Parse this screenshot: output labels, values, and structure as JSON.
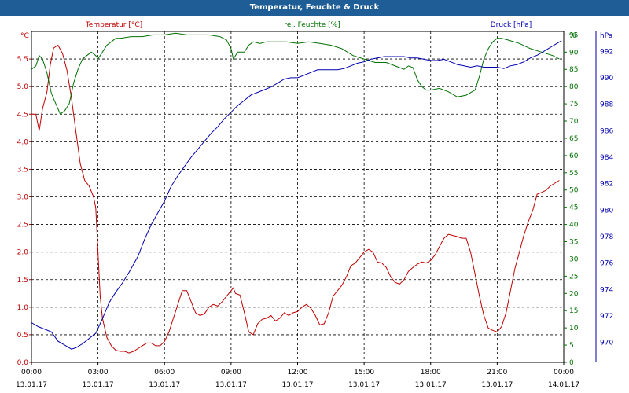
{
  "window": {
    "title": "Temperatur, Feuchte & Druck"
  },
  "chart_data": {
    "type": "line",
    "title": "Temperatur, Feuchte & Druck",
    "x": {
      "range_hours": [
        0,
        24
      ],
      "tick_times": [
        "00:00",
        "03:00",
        "06:00",
        "09:00",
        "12:00",
        "15:00",
        "18:00",
        "21:00",
        "00:00"
      ],
      "tick_dates": [
        "13.01.17",
        "13.01.17",
        "13.01.17",
        "13.01.17",
        "13.01.17",
        "13.01.17",
        "13.01.17",
        "13.01.17",
        "14.01.17"
      ]
    },
    "axes": {
      "temperature": {
        "unit": "°C",
        "ylim": [
          0,
          6
        ],
        "ticks": [
          "0.0",
          "0.5",
          "1.0",
          "1.5",
          "2.0",
          "2.5",
          "3.0",
          "3.5",
          "4.0",
          "4.5",
          "5.0",
          "5.5"
        ]
      },
      "humidity": {
        "unit": "%",
        "ylim": [
          0,
          96
        ],
        "ticks": [
          "0",
          "5",
          "10",
          "15",
          "20",
          "25",
          "30",
          "35",
          "40",
          "45",
          "50",
          "55",
          "60",
          "65",
          "70",
          "75",
          "80",
          "85",
          "90",
          "95"
        ]
      },
      "pressure": {
        "unit": "hPa",
        "ylim": [
          968.5,
          993.5
        ],
        "ticks": [
          "970",
          "972",
          "974",
          "976",
          "978",
          "980",
          "982",
          "984",
          "986",
          "988",
          "990",
          "992"
        ]
      }
    },
    "grid": true,
    "legend": [
      "Temperatur [°C]",
      "rel. Feuchte [%]",
      "Druck [hPa]"
    ],
    "series": [
      {
        "name": "Temperatur [°C]",
        "axis": "temperature",
        "color": "#c00000",
        "points": [
          [
            0,
            4.5
          ],
          [
            0.2,
            4.5
          ],
          [
            0.35,
            4.2
          ],
          [
            0.5,
            4.6
          ],
          [
            0.7,
            4.9
          ],
          [
            0.85,
            5.4
          ],
          [
            1.0,
            5.7
          ],
          [
            1.2,
            5.75
          ],
          [
            1.4,
            5.6
          ],
          [
            1.6,
            5.3
          ],
          [
            1.8,
            4.8
          ],
          [
            2.0,
            4.2
          ],
          [
            2.2,
            3.6
          ],
          [
            2.4,
            3.3
          ],
          [
            2.6,
            3.2
          ],
          [
            2.8,
            3.0
          ],
          [
            2.9,
            2.8
          ],
          [
            3.0,
            2.0
          ],
          [
            3.1,
            1.2
          ],
          [
            3.2,
            0.8
          ],
          [
            3.4,
            0.45
          ],
          [
            3.6,
            0.3
          ],
          [
            3.8,
            0.22
          ],
          [
            4.0,
            0.2
          ],
          [
            4.2,
            0.2
          ],
          [
            4.4,
            0.17
          ],
          [
            4.6,
            0.2
          ],
          [
            4.8,
            0.25
          ],
          [
            5.0,
            0.3
          ],
          [
            5.2,
            0.35
          ],
          [
            5.4,
            0.35
          ],
          [
            5.6,
            0.3
          ],
          [
            5.8,
            0.3
          ],
          [
            6.0,
            0.38
          ],
          [
            6.2,
            0.55
          ],
          [
            6.4,
            0.8
          ],
          [
            6.6,
            1.05
          ],
          [
            6.8,
            1.3
          ],
          [
            7.0,
            1.3
          ],
          [
            7.2,
            1.1
          ],
          [
            7.4,
            0.9
          ],
          [
            7.6,
            0.85
          ],
          [
            7.8,
            0.88
          ],
          [
            8.0,
            1.0
          ],
          [
            8.2,
            1.05
          ],
          [
            8.4,
            1.02
          ],
          [
            8.6,
            1.1
          ],
          [
            8.8,
            1.2
          ],
          [
            9.0,
            1.3
          ],
          [
            9.1,
            1.35
          ],
          [
            9.2,
            1.25
          ],
          [
            9.4,
            1.22
          ],
          [
            9.6,
            0.9
          ],
          [
            9.8,
            0.55
          ],
          [
            10.0,
            0.5
          ],
          [
            10.2,
            0.7
          ],
          [
            10.4,
            0.78
          ],
          [
            10.6,
            0.8
          ],
          [
            10.8,
            0.85
          ],
          [
            11.0,
            0.75
          ],
          [
            11.2,
            0.8
          ],
          [
            11.4,
            0.9
          ],
          [
            11.6,
            0.85
          ],
          [
            11.8,
            0.9
          ],
          [
            12.0,
            0.92
          ],
          [
            12.2,
            1.0
          ],
          [
            12.4,
            1.05
          ],
          [
            12.6,
            0.98
          ],
          [
            12.8,
            0.85
          ],
          [
            13.0,
            0.68
          ],
          [
            13.2,
            0.7
          ],
          [
            13.4,
            0.9
          ],
          [
            13.6,
            1.2
          ],
          [
            13.8,
            1.3
          ],
          [
            14.0,
            1.4
          ],
          [
            14.2,
            1.55
          ],
          [
            14.4,
            1.75
          ],
          [
            14.6,
            1.8
          ],
          [
            14.8,
            1.9
          ],
          [
            15.0,
            2.0
          ],
          [
            15.2,
            2.05
          ],
          [
            15.4,
            2.0
          ],
          [
            15.6,
            1.82
          ],
          [
            15.8,
            1.8
          ],
          [
            16.0,
            1.72
          ],
          [
            16.2,
            1.55
          ],
          [
            16.4,
            1.45
          ],
          [
            16.6,
            1.42
          ],
          [
            16.8,
            1.5
          ],
          [
            17.0,
            1.65
          ],
          [
            17.2,
            1.72
          ],
          [
            17.4,
            1.78
          ],
          [
            17.6,
            1.82
          ],
          [
            17.8,
            1.8
          ],
          [
            18.0,
            1.85
          ],
          [
            18.2,
            1.95
          ],
          [
            18.4,
            2.1
          ],
          [
            18.6,
            2.25
          ],
          [
            18.8,
            2.32
          ],
          [
            19.0,
            2.3
          ],
          [
            19.2,
            2.28
          ],
          [
            19.4,
            2.25
          ],
          [
            19.6,
            2.25
          ],
          [
            19.8,
            2.0
          ],
          [
            20.0,
            1.6
          ],
          [
            20.2,
            1.2
          ],
          [
            20.4,
            0.85
          ],
          [
            20.6,
            0.62
          ],
          [
            20.8,
            0.58
          ],
          [
            21.0,
            0.55
          ],
          [
            21.2,
            0.65
          ],
          [
            21.4,
            0.9
          ],
          [
            21.6,
            1.3
          ],
          [
            21.8,
            1.7
          ],
          [
            22.0,
            2.0
          ],
          [
            22.2,
            2.3
          ],
          [
            22.4,
            2.55
          ],
          [
            22.6,
            2.75
          ],
          [
            22.8,
            3.05
          ],
          [
            23.0,
            3.08
          ],
          [
            23.2,
            3.12
          ],
          [
            23.4,
            3.2
          ],
          [
            23.6,
            3.25
          ],
          [
            23.8,
            3.3
          ]
        ]
      },
      {
        "name": "rel. Feuchte [%]",
        "axis": "humidity",
        "color": "#007000",
        "points": [
          [
            0,
            85
          ],
          [
            0.2,
            86
          ],
          [
            0.35,
            89
          ],
          [
            0.5,
            88
          ],
          [
            0.7,
            84
          ],
          [
            0.9,
            78
          ],
          [
            1.1,
            75
          ],
          [
            1.3,
            72
          ],
          [
            1.5,
            73
          ],
          [
            1.7,
            75
          ],
          [
            1.9,
            81
          ],
          [
            2.1,
            85
          ],
          [
            2.3,
            88
          ],
          [
            2.5,
            89
          ],
          [
            2.7,
            90
          ],
          [
            2.9,
            89
          ],
          [
            3.0,
            88
          ],
          [
            3.2,
            90
          ],
          [
            3.4,
            92
          ],
          [
            3.6,
            93
          ],
          [
            3.8,
            94
          ],
          [
            4.0,
            94
          ],
          [
            4.5,
            94.5
          ],
          [
            5.0,
            94.5
          ],
          [
            5.5,
            95
          ],
          [
            6.0,
            95
          ],
          [
            6.5,
            95.5
          ],
          [
            7.0,
            95
          ],
          [
            7.5,
            95
          ],
          [
            8.0,
            95
          ],
          [
            8.5,
            94.5
          ],
          [
            8.8,
            93.5
          ],
          [
            9.0,
            91
          ],
          [
            9.1,
            88
          ],
          [
            9.3,
            90
          ],
          [
            9.6,
            90
          ],
          [
            9.8,
            92
          ],
          [
            10.0,
            93
          ],
          [
            10.3,
            92.5
          ],
          [
            10.6,
            93
          ],
          [
            11.0,
            93
          ],
          [
            11.5,
            93
          ],
          [
            12.0,
            92.5
          ],
          [
            12.5,
            93
          ],
          [
            13.0,
            92.5
          ],
          [
            13.5,
            92
          ],
          [
            14.0,
            91
          ],
          [
            14.5,
            89
          ],
          [
            15.0,
            88
          ],
          [
            15.5,
            87
          ],
          [
            16.0,
            87
          ],
          [
            16.4,
            86
          ],
          [
            16.8,
            85
          ],
          [
            17.0,
            86
          ],
          [
            17.2,
            85.5
          ],
          [
            17.4,
            82
          ],
          [
            17.6,
            80
          ],
          [
            17.8,
            79
          ],
          [
            18.0,
            79
          ],
          [
            18.4,
            79.5
          ],
          [
            18.8,
            78.5
          ],
          [
            19.2,
            77
          ],
          [
            19.6,
            77.5
          ],
          [
            20.0,
            79
          ],
          [
            20.2,
            83
          ],
          [
            20.4,
            88
          ],
          [
            20.6,
            91
          ],
          [
            20.8,
            93
          ],
          [
            21.0,
            94
          ],
          [
            21.2,
            94
          ],
          [
            21.5,
            93.5
          ],
          [
            22.0,
            92.5
          ],
          [
            22.5,
            91
          ],
          [
            23.0,
            90
          ],
          [
            23.5,
            89
          ],
          [
            23.8,
            88
          ]
        ]
      },
      {
        "name": "Druck [hPa]",
        "axis": "pressure",
        "color": "#0000b0",
        "points": [
          [
            0,
            971.5
          ],
          [
            0.3,
            971.2
          ],
          [
            0.6,
            971.0
          ],
          [
            0.9,
            970.8
          ],
          [
            1.2,
            970.1
          ],
          [
            1.5,
            969.8
          ],
          [
            1.8,
            969.5
          ],
          [
            2.0,
            969.6
          ],
          [
            2.3,
            969.9
          ],
          [
            2.6,
            970.3
          ],
          [
            2.9,
            970.7
          ],
          [
            3.2,
            971.8
          ],
          [
            3.5,
            973.0
          ],
          [
            3.8,
            973.8
          ],
          [
            4.1,
            974.5
          ],
          [
            4.4,
            975.3
          ],
          [
            4.8,
            976.5
          ],
          [
            5.1,
            977.8
          ],
          [
            5.4,
            978.9
          ],
          [
            5.7,
            979.8
          ],
          [
            6.0,
            980.7
          ],
          [
            6.3,
            981.8
          ],
          [
            6.6,
            982.6
          ],
          [
            6.9,
            983.3
          ],
          [
            7.2,
            984.0
          ],
          [
            7.5,
            984.6
          ],
          [
            7.8,
            985.2
          ],
          [
            8.1,
            985.8
          ],
          [
            8.4,
            986.3
          ],
          [
            8.7,
            986.9
          ],
          [
            9.0,
            987.4
          ],
          [
            9.3,
            987.9
          ],
          [
            9.6,
            988.3
          ],
          [
            9.9,
            988.7
          ],
          [
            10.2,
            988.9
          ],
          [
            10.5,
            989.1
          ],
          [
            10.8,
            989.3
          ],
          [
            11.1,
            989.6
          ],
          [
            11.4,
            989.9
          ],
          [
            11.7,
            990.0
          ],
          [
            12.0,
            990.0
          ],
          [
            12.3,
            990.2
          ],
          [
            12.6,
            990.4
          ],
          [
            12.9,
            990.6
          ],
          [
            13.2,
            990.6
          ],
          [
            13.5,
            990.6
          ],
          [
            13.8,
            990.6
          ],
          [
            14.1,
            990.7
          ],
          [
            14.4,
            990.9
          ],
          [
            14.7,
            991.1
          ],
          [
            15.0,
            991.2
          ],
          [
            15.3,
            991.4
          ],
          [
            15.6,
            991.5
          ],
          [
            15.9,
            991.6
          ],
          [
            16.2,
            991.6
          ],
          [
            16.5,
            991.6
          ],
          [
            16.8,
            991.6
          ],
          [
            17.1,
            991.5
          ],
          [
            17.4,
            991.5
          ],
          [
            17.7,
            991.4
          ],
          [
            18.0,
            991.3
          ],
          [
            18.3,
            991.3
          ],
          [
            18.6,
            991.4
          ],
          [
            18.9,
            991.2
          ],
          [
            19.2,
            991.0
          ],
          [
            19.5,
            990.9
          ],
          [
            19.8,
            990.8
          ],
          [
            20.1,
            990.9
          ],
          [
            20.4,
            990.8
          ],
          [
            20.7,
            990.8
          ],
          [
            21.0,
            990.8
          ],
          [
            21.3,
            990.7
          ],
          [
            21.6,
            990.9
          ],
          [
            21.9,
            991.0
          ],
          [
            22.2,
            991.2
          ],
          [
            22.5,
            991.5
          ],
          [
            22.8,
            991.7
          ],
          [
            23.1,
            992.0
          ],
          [
            23.4,
            992.3
          ],
          [
            23.7,
            992.6
          ],
          [
            23.9,
            992.8
          ]
        ]
      }
    ]
  }
}
